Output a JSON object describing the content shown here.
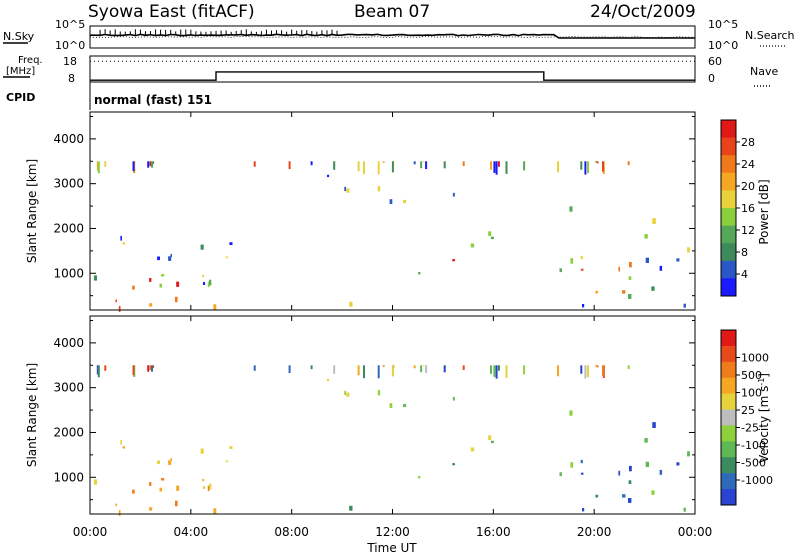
{
  "header": {
    "title": "Syowa East (fitACF)",
    "beam": "Beam 07",
    "date": "24/Oct/2009"
  },
  "chart_data": [
    {
      "type": "line",
      "panel": "noise",
      "ylabel_left": "N.Sky",
      "ylabel_right": "N.Search",
      "ytick_left": [
        "10^5",
        "10^0"
      ],
      "ytick_right": [
        "10^5",
        "10^0"
      ],
      "scale": "log"
    },
    {
      "type": "line",
      "panel": "frequency-nave",
      "ylabel_left": "Freq.",
      "ylabel_left_unit": "[MHz]",
      "ylabel_right": "Nave",
      "ytick_left": [
        "18",
        "8"
      ],
      "ytick_right": [
        "60",
        "0"
      ],
      "ylim_left": [
        8,
        18
      ],
      "ylim_right": [
        0,
        60
      ],
      "freq_steps": [
        {
          "t_start": 0,
          "t_end": 5,
          "freq": 8.7
        },
        {
          "t_start": 5,
          "t_end": 18,
          "freq": 11.9
        },
        {
          "t_start": 18,
          "t_end": 24,
          "freq": 8.7
        }
      ],
      "nave_approx": 48
    },
    {
      "type": "text",
      "panel": "cpid",
      "label": "CPID",
      "value": "normal (fast) 151"
    },
    {
      "type": "heatmap",
      "panel": "power",
      "ylabel": "Slant Range [km]",
      "yticks": [
        "1000",
        "2000",
        "3000",
        "4000"
      ],
      "ylim": [
        180,
        4600
      ],
      "xlim": [
        0,
        24
      ],
      "colorbar": {
        "label": "Power [dB]",
        "ticks": [
          "4",
          "8",
          "12",
          "16",
          "20",
          "24",
          "28"
        ],
        "range": [
          0,
          30
        ],
        "colors": [
          "#1a1aff",
          "#2a57c8",
          "#3e8a5a",
          "#56a859",
          "#8ccf3c",
          "#e8d13a",
          "#f5a623",
          "#f07a1b",
          "#e8431a",
          "#e01818"
        ]
      }
    },
    {
      "type": "heatmap",
      "panel": "velocity",
      "ylabel": "Slant Range [km]",
      "yticks": [
        "1000",
        "2000",
        "3000",
        "4000"
      ],
      "ylim": [
        180,
        4600
      ],
      "xlim": [
        0,
        24
      ],
      "colorbar": {
        "label": "Velocity [m s",
        "label_sup": "-1",
        "label_end": "]",
        "ticks": [
          "1000",
          "500",
          "100",
          "25",
          "-25",
          "-100",
          "-500",
          "-1000"
        ],
        "colors": [
          "#2a43d0",
          "#2f6ab8",
          "#3b8a60",
          "#5fb855",
          "#8ed13d",
          "#bdbdbd",
          "#e6d23a",
          "#f5a623",
          "#f07b1b",
          "#e84a1b",
          "#e01818"
        ]
      }
    }
  ],
  "xaxis": {
    "label": "Time UT",
    "ticks": [
      "00:00",
      "04:00",
      "08:00",
      "12:00",
      "16:00",
      "20:00",
      "00:00"
    ]
  }
}
